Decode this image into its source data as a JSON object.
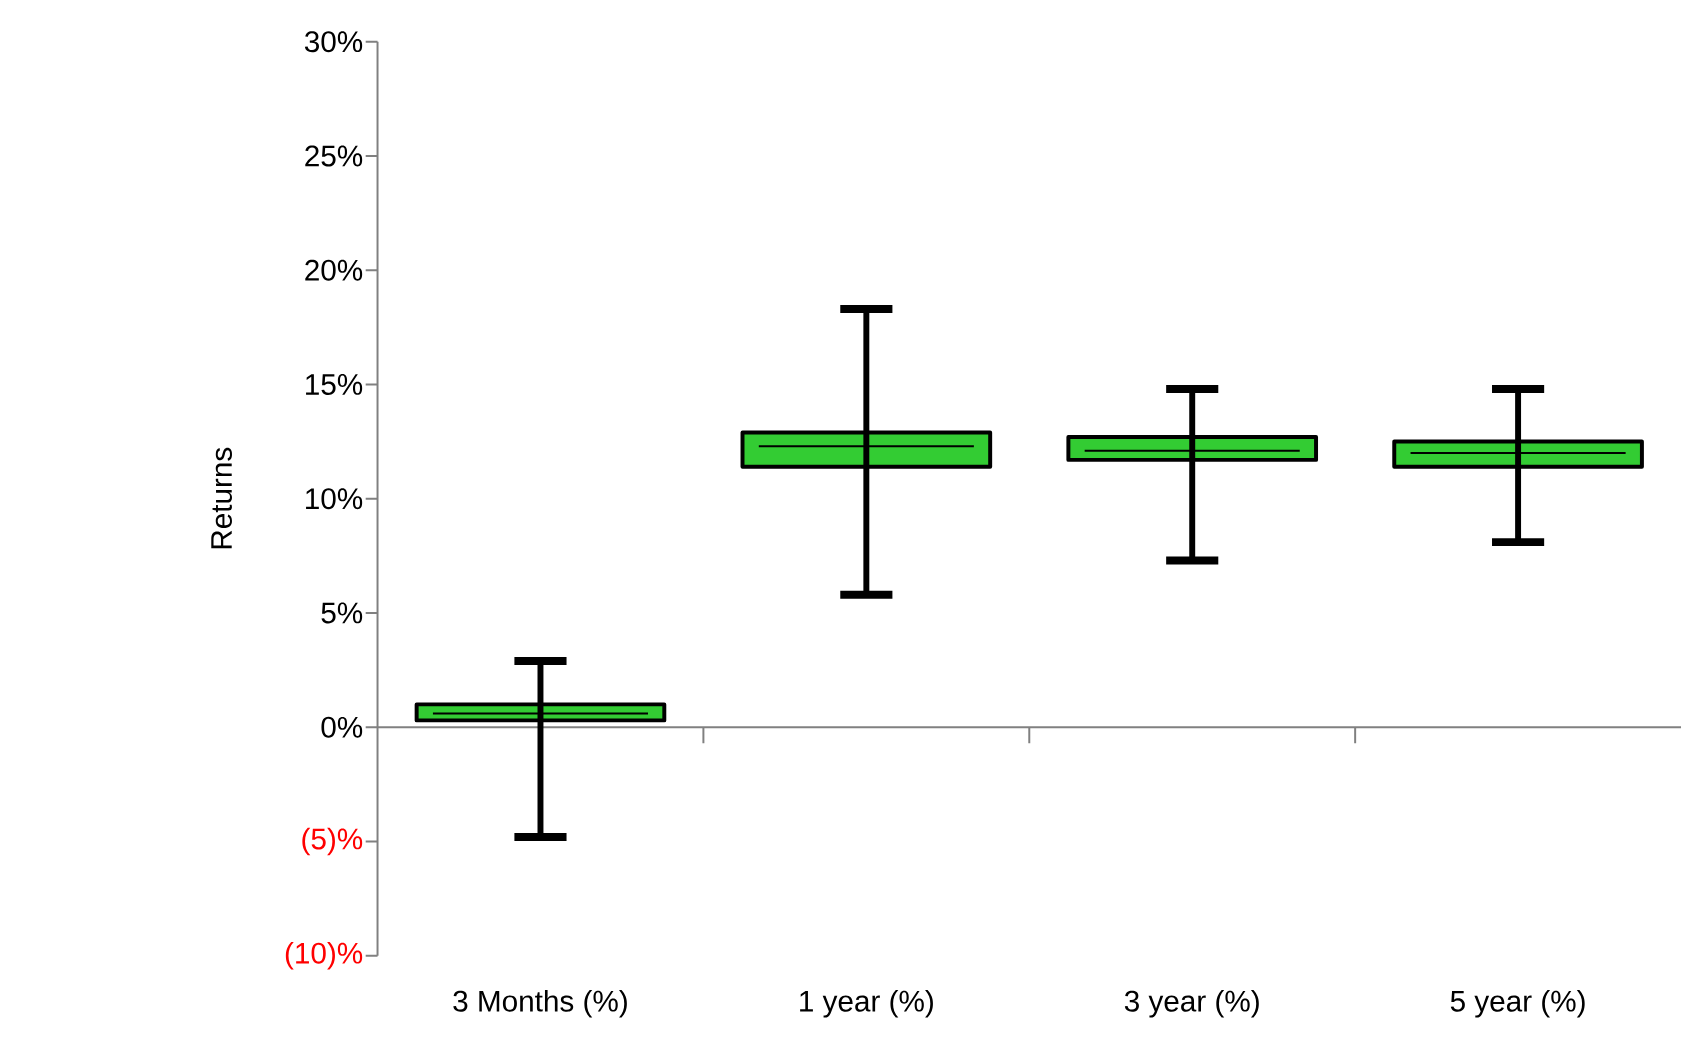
{
  "chart_data": {
    "type": "box",
    "ylabel": "Returns",
    "categories": [
      "3 Months (%)",
      "1 year (%)",
      "3 year (%)",
      "5 year (%)"
    ],
    "boxes": [
      {
        "low": -4.8,
        "q1": 0.3,
        "median": 0.6,
        "q3": 1.0,
        "high": 2.9
      },
      {
        "low": 5.8,
        "q1": 11.4,
        "median": 12.3,
        "q3": 12.9,
        "high": 18.3
      },
      {
        "low": 7.3,
        "q1": 11.7,
        "median": 12.1,
        "q3": 12.7,
        "high": 14.8
      },
      {
        "low": 8.1,
        "q1": 11.4,
        "median": 12.0,
        "q3": 12.5,
        "high": 14.8
      }
    ],
    "color": "#33cc33",
    "ylim": [
      -10,
      30
    ],
    "yticks": [
      {
        "value": -10,
        "label": "(10)%"
      },
      {
        "value": -5,
        "label": "(5)%"
      },
      {
        "value": 0,
        "label": "0%"
      },
      {
        "value": 5,
        "label": "5%"
      },
      {
        "value": 10,
        "label": "10%"
      },
      {
        "value": 15,
        "label": "15%"
      },
      {
        "value": 20,
        "label": "20%"
      },
      {
        "value": 25,
        "label": "25%"
      },
      {
        "value": 30,
        "label": "30%"
      }
    ]
  }
}
